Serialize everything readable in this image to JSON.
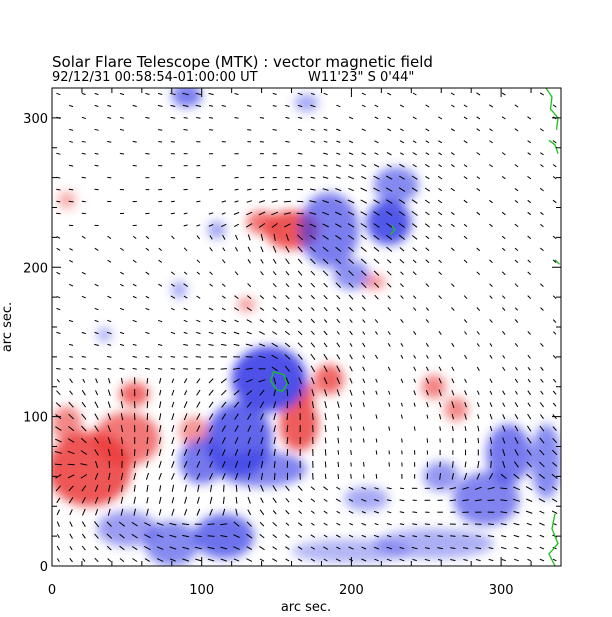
{
  "chart_data": {
    "type": "heatmap",
    "title": "Solar Flare Telescope (MTK) : vector magnetic field",
    "subtitle_left": "92/12/31   00:58:54-01:00:00 UT",
    "subtitle_right": "W11'23\"   S 0'44\"",
    "xlabel": "arc sec.",
    "ylabel": "arc sec.",
    "xlim": [
      0,
      340
    ],
    "ylim": [
      0,
      320
    ],
    "x_ticks": [
      0,
      100,
      200,
      300
    ],
    "y_ticks": [
      0,
      100,
      200,
      300
    ],
    "grid": false,
    "colors": {
      "positive_polarity": "#ec3b3b",
      "negative_polarity": "#3a3fe6",
      "transverse_vectors": "#000000",
      "contour": "#19c019",
      "background": "#ffffff"
    },
    "regions": [
      {
        "polarity": "positive",
        "x": 25,
        "y": 65,
        "rx": 28,
        "ry": 25,
        "strength": 0.95
      },
      {
        "polarity": "positive",
        "x": 50,
        "y": 85,
        "rx": 22,
        "ry": 18,
        "strength": 0.7
      },
      {
        "polarity": "positive",
        "x": 10,
        "y": 95,
        "rx": 10,
        "ry": 12,
        "strength": 0.55
      },
      {
        "polarity": "positive",
        "x": 55,
        "y": 115,
        "rx": 10,
        "ry": 8,
        "strength": 0.8
      },
      {
        "polarity": "positive",
        "x": 95,
        "y": 90,
        "rx": 10,
        "ry": 10,
        "strength": 0.45
      },
      {
        "polarity": "positive",
        "x": 160,
        "y": 225,
        "rx": 18,
        "ry": 13,
        "strength": 0.95
      },
      {
        "polarity": "positive",
        "x": 140,
        "y": 230,
        "rx": 10,
        "ry": 8,
        "strength": 0.7
      },
      {
        "polarity": "positive",
        "x": 165,
        "y": 95,
        "rx": 13,
        "ry": 18,
        "strength": 0.9
      },
      {
        "polarity": "positive",
        "x": 185,
        "y": 125,
        "rx": 10,
        "ry": 10,
        "strength": 0.8
      },
      {
        "polarity": "positive",
        "x": 170,
        "y": 115,
        "rx": 6,
        "ry": 8,
        "strength": 0.8
      },
      {
        "polarity": "positive",
        "x": 255,
        "y": 120,
        "rx": 8,
        "ry": 8,
        "strength": 0.6
      },
      {
        "polarity": "positive",
        "x": 270,
        "y": 105,
        "rx": 8,
        "ry": 8,
        "strength": 0.55
      },
      {
        "polarity": "positive",
        "x": 215,
        "y": 190,
        "rx": 8,
        "ry": 5,
        "strength": 0.45
      },
      {
        "polarity": "positive",
        "x": 130,
        "y": 175,
        "rx": 6,
        "ry": 5,
        "strength": 0.4
      },
      {
        "polarity": "positive",
        "x": 10,
        "y": 245,
        "rx": 6,
        "ry": 6,
        "strength": 0.25
      },
      {
        "polarity": "negative",
        "x": 145,
        "y": 125,
        "rx": 25,
        "ry": 22,
        "strength": 1.0
      },
      {
        "polarity": "negative",
        "x": 125,
        "y": 85,
        "rx": 22,
        "ry": 25,
        "strength": 0.85
      },
      {
        "polarity": "negative",
        "x": 100,
        "y": 70,
        "rx": 15,
        "ry": 15,
        "strength": 0.7
      },
      {
        "polarity": "negative",
        "x": 140,
        "y": 65,
        "rx": 30,
        "ry": 12,
        "strength": 0.6
      },
      {
        "polarity": "negative",
        "x": 115,
        "y": 20,
        "rx": 20,
        "ry": 15,
        "strength": 0.75
      },
      {
        "polarity": "negative",
        "x": 80,
        "y": 15,
        "rx": 18,
        "ry": 15,
        "strength": 0.55
      },
      {
        "polarity": "negative",
        "x": 50,
        "y": 25,
        "rx": 20,
        "ry": 12,
        "strength": 0.4
      },
      {
        "polarity": "negative",
        "x": 185,
        "y": 225,
        "rx": 20,
        "ry": 25,
        "strength": 0.65
      },
      {
        "polarity": "negative",
        "x": 225,
        "y": 230,
        "rx": 15,
        "ry": 15,
        "strength": 0.95
      },
      {
        "polarity": "negative",
        "x": 230,
        "y": 255,
        "rx": 15,
        "ry": 12,
        "strength": 0.55
      },
      {
        "polarity": "negative",
        "x": 200,
        "y": 195,
        "rx": 12,
        "ry": 10,
        "strength": 0.5
      },
      {
        "polarity": "negative",
        "x": 90,
        "y": 315,
        "rx": 10,
        "ry": 8,
        "strength": 0.65
      },
      {
        "polarity": "negative",
        "x": 305,
        "y": 75,
        "rx": 15,
        "ry": 20,
        "strength": 0.7
      },
      {
        "polarity": "negative",
        "x": 290,
        "y": 45,
        "rx": 22,
        "ry": 18,
        "strength": 0.6
      },
      {
        "polarity": "negative",
        "x": 330,
        "y": 70,
        "rx": 10,
        "ry": 25,
        "strength": 0.55
      },
      {
        "polarity": "negative",
        "x": 260,
        "y": 60,
        "rx": 12,
        "ry": 10,
        "strength": 0.45
      },
      {
        "polarity": "negative",
        "x": 210,
        "y": 45,
        "rx": 15,
        "ry": 8,
        "strength": 0.3
      },
      {
        "polarity": "negative",
        "x": 200,
        "y": 10,
        "rx": 40,
        "ry": 8,
        "strength": 0.2
      },
      {
        "polarity": "negative",
        "x": 255,
        "y": 15,
        "rx": 40,
        "ry": 10,
        "strength": 0.25
      },
      {
        "polarity": "negative",
        "x": 110,
        "y": 225,
        "rx": 6,
        "ry": 6,
        "strength": 0.35
      },
      {
        "polarity": "negative",
        "x": 85,
        "y": 185,
        "rx": 5,
        "ry": 6,
        "strength": 0.3
      },
      {
        "polarity": "negative",
        "x": 35,
        "y": 155,
        "rx": 5,
        "ry": 5,
        "strength": 0.25
      },
      {
        "polarity": "negative",
        "x": 170,
        "y": 310,
        "rx": 8,
        "ry": 6,
        "strength": 0.3
      }
    ],
    "contours": [
      {
        "points": [
          [
            150,
            118
          ],
          [
            146,
            124
          ],
          [
            148,
            130
          ],
          [
            155,
            128
          ],
          [
            157,
            122
          ],
          [
            154,
            117
          ],
          [
            150,
            118
          ]
        ]
      },
      {
        "points": [
          [
            330,
            320
          ],
          [
            334,
            314
          ],
          [
            333,
            306
          ],
          [
            338,
            300
          ],
          [
            337,
            292
          ]
        ]
      },
      {
        "points": [
          [
            332,
            285
          ],
          [
            336,
            282
          ],
          [
            338,
            276
          ]
        ]
      },
      {
        "points": [
          [
            336,
            205
          ],
          [
            339,
            202
          ]
        ]
      },
      {
        "points": [
          [
            336,
            35
          ],
          [
            334,
            25
          ],
          [
            338,
            15
          ],
          [
            332,
            8
          ],
          [
            336,
            0
          ]
        ]
      },
      {
        "points": [
          [
            226,
            222
          ],
          [
            229,
            225
          ],
          [
            227,
            228
          ]
        ]
      }
    ],
    "vector_field": {
      "x_step": 8.5,
      "y_step": 8,
      "length": 7,
      "base_angle_deg": -35,
      "threshold": 0.12,
      "sources": [
        {
          "x": 145,
          "y": 125,
          "k": 1.0
        },
        {
          "x": 160,
          "y": 225,
          "k": 0.7
        },
        {
          "x": 25,
          "y": 65,
          "k": 0.9
        },
        {
          "x": 300,
          "y": 60,
          "k": -0.8
        },
        {
          "x": 120,
          "y": 30,
          "k": -0.7
        }
      ]
    }
  }
}
